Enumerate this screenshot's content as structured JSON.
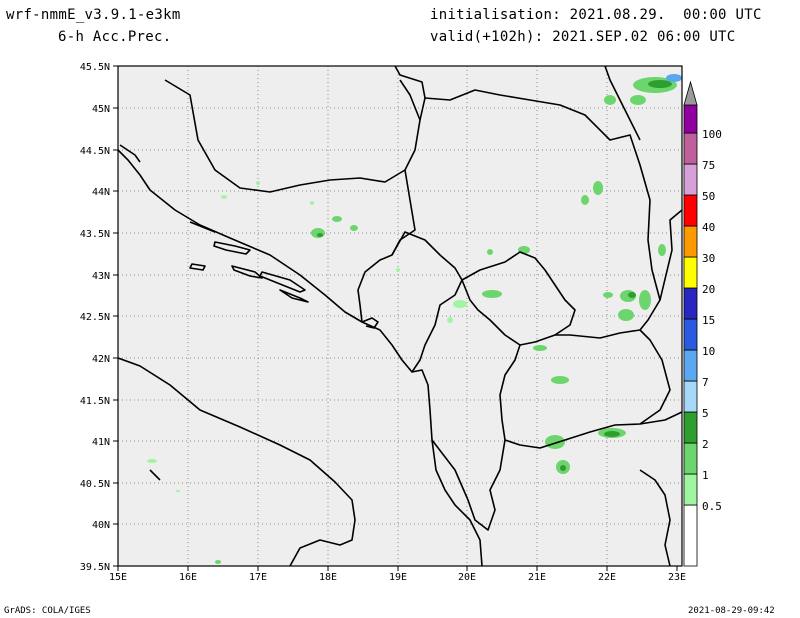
{
  "header": {
    "model": "wrf-nmmE_v3.9.1-e3km",
    "field": "6-h Acc.Prec.",
    "init": "initialisation: 2021.08.29.  00:00 UTC",
    "valid": "valid(+102h): 2021.SEP.02 06:00 UTC"
  },
  "footer": {
    "left": "GrADS: COLA/IGES",
    "right": "2021-08-29-09:42"
  },
  "axes": {
    "lon_ticks": [
      "15E",
      "16E",
      "17E",
      "18E",
      "19E",
      "20E",
      "21E",
      "22E",
      "23E"
    ],
    "lat_ticks": [
      "45.5N",
      "45N",
      "44.5N",
      "44N",
      "43.5N",
      "43N",
      "42.5N",
      "42N",
      "41.5N",
      "41N",
      "40.5N",
      "40N",
      "39.5N"
    ]
  },
  "legend": {
    "levels": [
      "0.5",
      "1",
      "2",
      "5",
      "7",
      "10",
      "15",
      "20",
      "30",
      "40",
      "50",
      "75",
      "100"
    ],
    "colors": [
      "#a0f5a0",
      "#6dd56d",
      "#2e9e2e",
      "#a8d8f8",
      "#5aa8f0",
      "#2a5ae0",
      "#2828c0",
      "#ffff00",
      "#ff9900",
      "#ff0000",
      "#d8a0d8",
      "#c0609a",
      "#9000a0",
      "#9a9a9a"
    ]
  },
  "colors": {
    "land": "#eeeeee",
    "sea": "#eeeeee",
    "border": "#000000",
    "grid": "#8f8f8f"
  }
}
